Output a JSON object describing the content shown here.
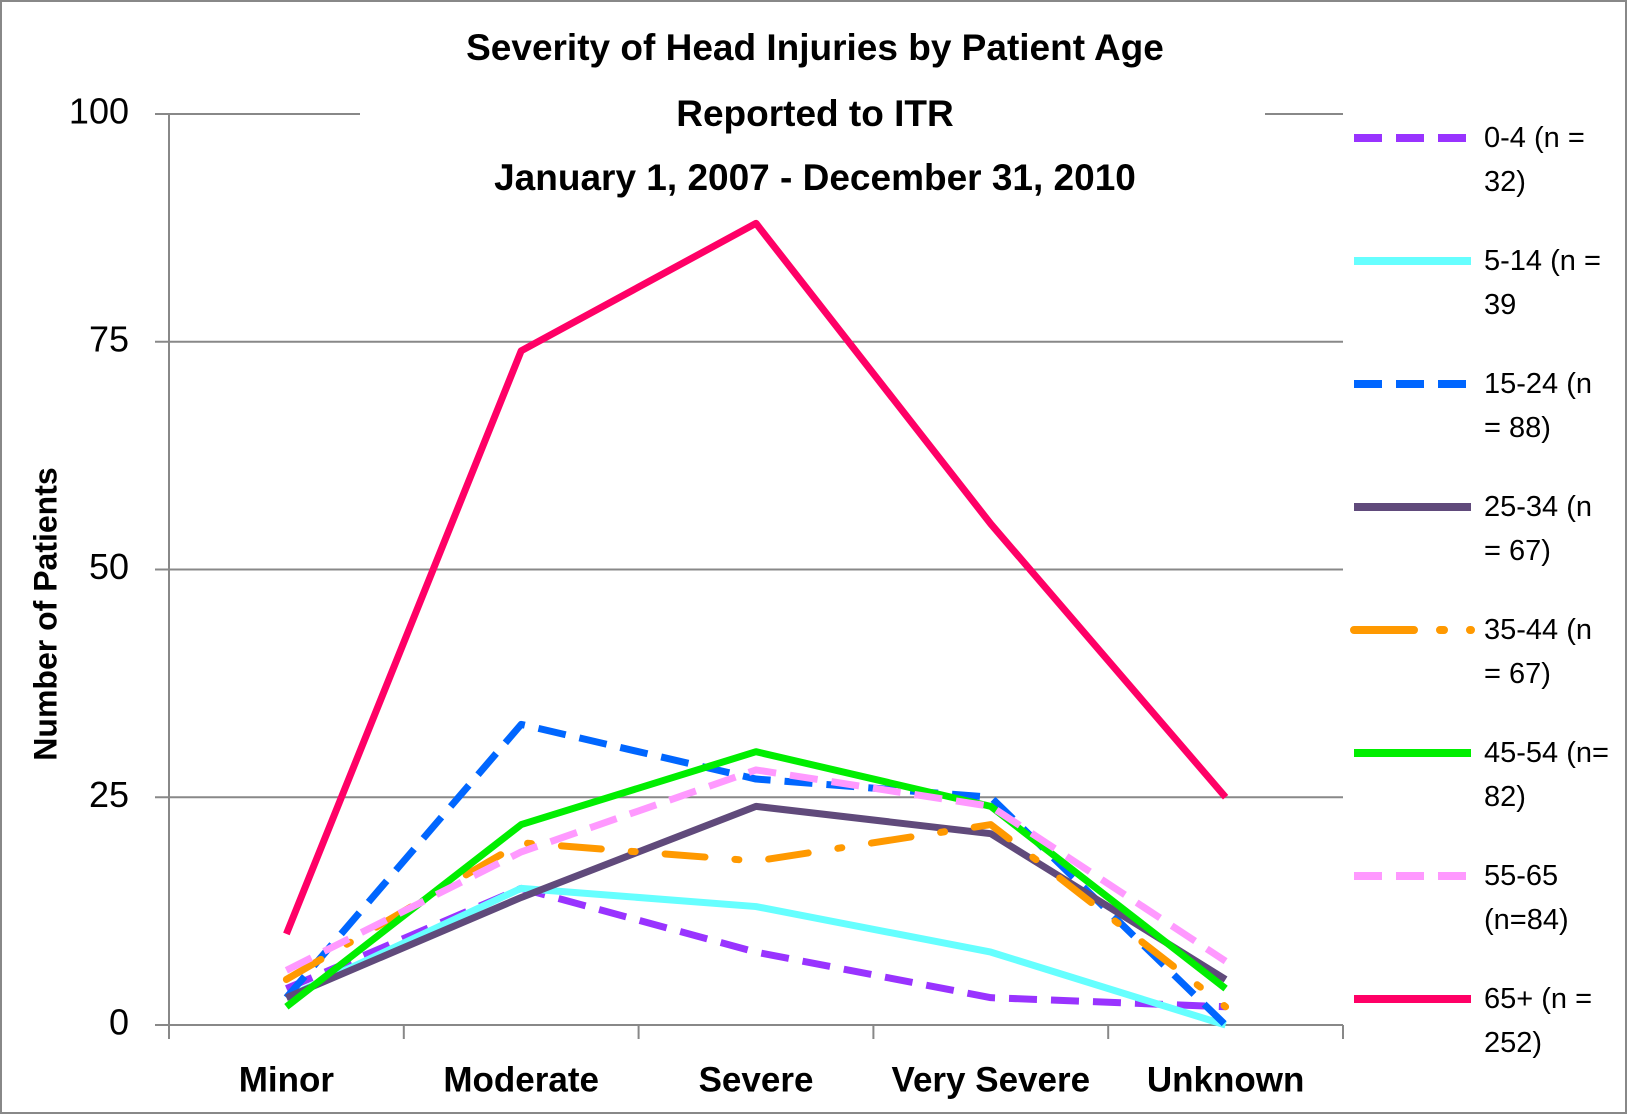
{
  "chart_data": {
    "type": "line",
    "title": [
      "Severity of Head Injuries by Patient Age",
      "Reported to ITR",
      "January 1, 2007 - December 31, 2010"
    ],
    "y_label": "Number of Patients",
    "categories": [
      "Minor",
      "Moderate",
      "Severe",
      "Very Severe",
      "Unknown"
    ],
    "ylim": [
      0,
      100
    ],
    "yticks": [
      0,
      25,
      50,
      75,
      100
    ],
    "grid": true,
    "legend": "right",
    "series": [
      {
        "name": "0-4 (n = 32)",
        "color": "#9933ff",
        "dash": "dashed",
        "values": [
          4,
          15,
          8,
          3,
          2
        ]
      },
      {
        "name": "5-14 (n = 39",
        "color": "#66ffff",
        "dash": "solid",
        "values": [
          3,
          15,
          13,
          8,
          0
        ]
      },
      {
        "name": "15-24 (n = 88)",
        "color": "#0066ff",
        "dash": "dashed",
        "values": [
          3,
          33,
          27,
          25,
          0
        ]
      },
      {
        "name": "25-34 (n = 67)",
        "color": "#604a7b",
        "dash": "solid",
        "values": [
          3,
          14,
          24,
          21,
          5
        ]
      },
      {
        "name": "35-44 (n = 67)",
        "color": "#ff9900",
        "dash": "dashdot",
        "values": [
          5,
          20,
          18,
          22,
          2
        ]
      },
      {
        "name": "45-54 (n= 82)",
        "color": "#00ee00",
        "dash": "solid",
        "values": [
          2,
          22,
          30,
          24,
          4
        ]
      },
      {
        "name": "55-65 (n=84)",
        "color": "#ff99ff",
        "dash": "dashed",
        "values": [
          6,
          19,
          28,
          24,
          7
        ]
      },
      {
        "name": "65+ (n = 252)",
        "color": "#ff0066",
        "dash": "solid",
        "values": [
          10,
          74,
          88,
          55,
          25
        ]
      }
    ]
  }
}
